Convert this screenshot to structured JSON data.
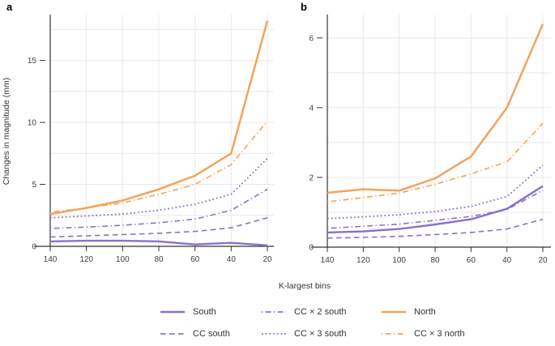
{
  "figure": {
    "panels": [
      {
        "letter": "a"
      },
      {
        "letter": "b"
      }
    ],
    "ylabel": "Changes in magnitude (mm)",
    "xlabel": "K-largest bins"
  },
  "colors": {
    "purple": "#8a70cc",
    "orange": "#f3a35c",
    "axis": "#333333",
    "grid": "#e8e8e8",
    "tick_text": "#404040"
  },
  "legend": {
    "rows": 2,
    "columns": 3,
    "items": [
      {
        "label": "South",
        "color": "purple",
        "dash": "solid",
        "thick": true,
        "col": 0,
        "row": 0
      },
      {
        "label": "CC south",
        "color": "purple",
        "dash": "dashed",
        "thick": false,
        "col": 0,
        "row": 1
      },
      {
        "label": "CC × 2 south",
        "color": "purple",
        "dash": "dotdash",
        "thick": false,
        "col": 1,
        "row": 0
      },
      {
        "label": "CC × 3 south",
        "color": "purple",
        "dash": "dotted",
        "thick": false,
        "col": 1,
        "row": 1
      },
      {
        "label": "North",
        "color": "orange",
        "dash": "solid",
        "thick": true,
        "col": 2,
        "row": 0
      },
      {
        "label": "CC × 3 north",
        "color": "orange",
        "dash": "dotdash",
        "thick": false,
        "col": 2,
        "row": 1
      }
    ]
  },
  "chart_data": [
    {
      "type": "line",
      "panel": "a",
      "title": "",
      "xlabel": "K-largest bins",
      "ylabel": "Changes in magnitude (mm)",
      "x": [
        140,
        120,
        100,
        80,
        60,
        40,
        20
      ],
      "x_axis_reversed": true,
      "ylim": [
        0,
        18.7
      ],
      "yticks_major": [
        0,
        5,
        10,
        15
      ],
      "yticks_minor": [
        2.5,
        7.5,
        12.5,
        17.5
      ],
      "grid": true,
      "series": [
        {
          "name": "CC south",
          "color": "purple",
          "dash": "dashed",
          "width": 1.6,
          "values": [
            0.75,
            0.85,
            0.95,
            1.05,
            1.2,
            1.5,
            2.3
          ]
        },
        {
          "name": "CC × 2 south",
          "color": "purple",
          "dash": "dotdash",
          "width": 1.6,
          "values": [
            1.45,
            1.55,
            1.7,
            1.9,
            2.2,
            2.9,
            4.6
          ]
        },
        {
          "name": "CC × 3 south",
          "color": "purple",
          "dash": "dotted",
          "width": 1.8,
          "values": [
            2.3,
            2.45,
            2.6,
            2.9,
            3.4,
            4.2,
            7.1
          ]
        },
        {
          "name": "South",
          "color": "purple",
          "dash": "solid",
          "width": 2.4,
          "values": [
            0.4,
            0.45,
            0.45,
            0.4,
            0.15,
            0.28,
            0.08
          ]
        },
        {
          "name": "CC × 3 north",
          "color": "orange",
          "dash": "dotdash",
          "width": 1.6,
          "values": [
            2.75,
            3.1,
            3.5,
            4.2,
            5.0,
            6.6,
            10.1
          ]
        },
        {
          "name": "North",
          "color": "orange",
          "dash": "solid",
          "width": 2.5,
          "values": [
            2.6,
            3.1,
            3.7,
            4.6,
            5.7,
            7.5,
            18.2
          ]
        }
      ]
    },
    {
      "type": "line",
      "panel": "b",
      "title": "",
      "xlabel": "K-largest bins",
      "ylabel": "Changes in magnitude (mm)",
      "x": [
        140,
        120,
        100,
        80,
        60,
        40,
        20
      ],
      "x_axis_reversed": true,
      "ylim": [
        0,
        6.67
      ],
      "yticks_major": [
        0,
        2,
        4,
        6
      ],
      "yticks_minor": [
        1,
        3,
        5
      ],
      "grid": true,
      "series": [
        {
          "name": "CC south",
          "color": "purple",
          "dash": "dashed",
          "width": 1.6,
          "values": [
            0.26,
            0.28,
            0.31,
            0.36,
            0.42,
            0.52,
            0.8
          ]
        },
        {
          "name": "CC × 2 south",
          "color": "purple",
          "dash": "dotdash",
          "width": 1.6,
          "values": [
            0.54,
            0.6,
            0.66,
            0.77,
            0.88,
            1.08,
            1.63
          ]
        },
        {
          "name": "CC × 3 south",
          "color": "purple",
          "dash": "dotted",
          "width": 1.8,
          "values": [
            0.82,
            0.87,
            0.93,
            1.02,
            1.17,
            1.45,
            2.35
          ]
        },
        {
          "name": "South",
          "color": "purple",
          "dash": "solid",
          "width": 2.4,
          "values": [
            0.42,
            0.45,
            0.52,
            0.65,
            0.8,
            1.1,
            1.75
          ]
        },
        {
          "name": "CC × 3 north",
          "color": "orange",
          "dash": "dotdash",
          "width": 1.6,
          "values": [
            1.3,
            1.42,
            1.55,
            1.8,
            2.1,
            2.45,
            3.55
          ]
        },
        {
          "name": "North",
          "color": "orange",
          "dash": "solid",
          "width": 2.5,
          "values": [
            1.56,
            1.66,
            1.62,
            1.97,
            2.6,
            4.0,
            6.4
          ]
        }
      ]
    }
  ]
}
